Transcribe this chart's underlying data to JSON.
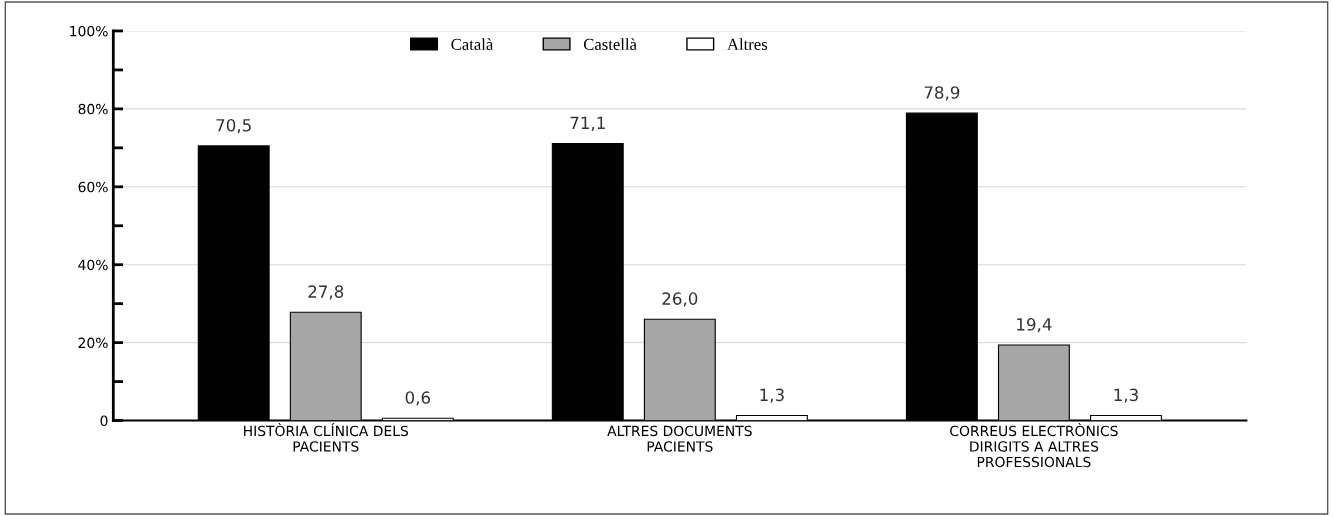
{
  "chart_data": {
    "type": "bar",
    "categories": [
      "HISTÒRIA CLÍNICA DELS\nPACIENTS",
      "ALTRES DOCUMENTS\nPACIENTS",
      "CORREUS ELECTRÒNICS\nDIRIGITS A ALTRES\nPROFESSIONALS"
    ],
    "series": [
      {
        "name": "Català",
        "color": "#000000",
        "values": [
          70.5,
          71.1,
          78.9
        ]
      },
      {
        "name": "Castellà",
        "color": "#a6a6a6",
        "values": [
          27.8,
          26.0,
          19.4
        ]
      },
      {
        "name": "Altres",
        "color": "#ffffff",
        "values": [
          0.6,
          1.3,
          1.3
        ]
      }
    ],
    "value_labels": [
      [
        "70,5",
        "71,1",
        "78,9"
      ],
      [
        "27,8",
        "26,0",
        "19,4"
      ],
      [
        "0,6",
        "1,3",
        "1,3"
      ]
    ],
    "ylim": [
      0,
      100
    ],
    "yticks": [
      {
        "value": 0,
        "label": "0"
      },
      {
        "value": 10,
        "label": null
      },
      {
        "value": 20,
        "label": "20%"
      },
      {
        "value": 30,
        "label": null
      },
      {
        "value": 40,
        "label": "40%"
      },
      {
        "value": 50,
        "label": null
      },
      {
        "value": 60,
        "label": "60%"
      },
      {
        "value": 70,
        "label": null
      },
      {
        "value": 80,
        "label": "80%"
      },
      {
        "value": 90,
        "label": null
      },
      {
        "value": 100,
        "label": "100%"
      }
    ],
    "grid": "y",
    "legend": "top"
  }
}
